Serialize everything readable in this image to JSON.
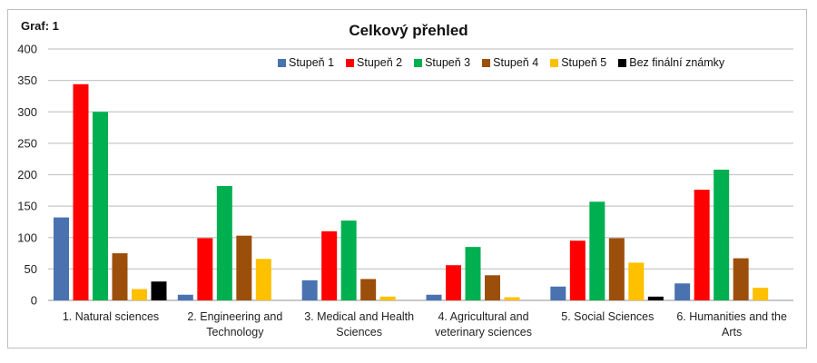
{
  "graf_label": "Graf: 1",
  "chart_data": {
    "type": "bar",
    "title": "Celkový přehled",
    "xlabel": "",
    "ylabel": "",
    "ylim": [
      0,
      400
    ],
    "yticks": [
      0,
      50,
      100,
      150,
      200,
      250,
      300,
      350,
      400
    ],
    "grid": true,
    "legend_position": "top-right",
    "categories": [
      "1. Natural sciences",
      "2. Engineering and Technology",
      "3. Medical and Health Sciences",
      "4. Agricultural and veterinary sciences",
      "5. Social Sciences",
      "6. Humanities and the Arts"
    ],
    "series": [
      {
        "name": "Stupeň 1",
        "color": "#4a72b0",
        "values": [
          132,
          9,
          32,
          9,
          22,
          27
        ]
      },
      {
        "name": "Stupeň 2",
        "color": "#ff0000",
        "values": [
          344,
          99,
          110,
          56,
          95,
          176
        ]
      },
      {
        "name": "Stupeň 3",
        "color": "#00b050",
        "values": [
          300,
          182,
          127,
          85,
          157,
          208
        ]
      },
      {
        "name": "Stupeň 4",
        "color": "#9c4f0a",
        "values": [
          75,
          103,
          34,
          40,
          99,
          67
        ]
      },
      {
        "name": "Stupeň 5",
        "color": "#ffc000",
        "values": [
          18,
          66,
          6,
          5,
          60,
          20
        ]
      },
      {
        "name": "Bez finální známky",
        "color": "#000000",
        "values": [
          30,
          0,
          0,
          0,
          6,
          0
        ]
      }
    ]
  }
}
